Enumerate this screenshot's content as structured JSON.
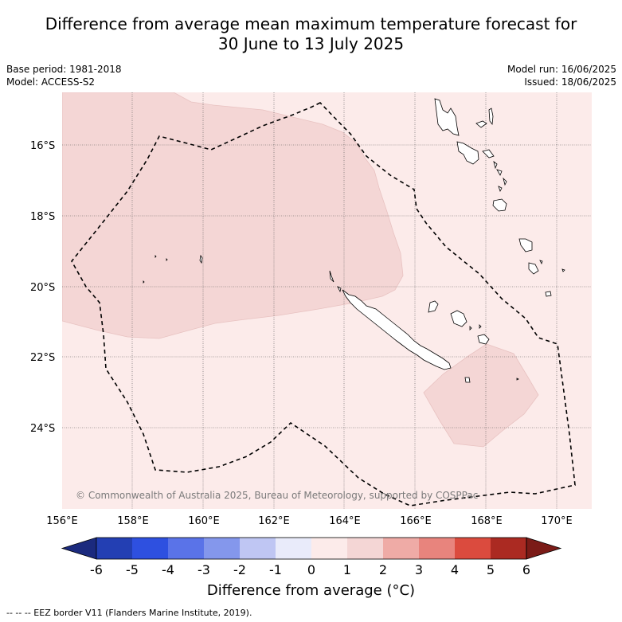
{
  "title": {
    "line1": "Difference from average mean maximum temperature forecast for",
    "line2": "30 June to 13 July 2025"
  },
  "meta": {
    "base_period": "Base period: 1981-2018",
    "model": "Model: ACCESS-S2",
    "model_run": "Model run: 16/06/2025",
    "issued": "Issued: 18/06/2025"
  },
  "map": {
    "lat_ticks": [
      "16°S",
      "18°S",
      "20°S",
      "22°S",
      "24°S"
    ],
    "lon_ticks": [
      "156°E",
      "158°E",
      "160°E",
      "162°E",
      "164°E",
      "166°E",
      "168°E",
      "170°E"
    ],
    "credit": "© Commonwealth of Australia 2025, Bureau of Meteorology, supported by COSPPac",
    "background_color": "#fcebea",
    "anomaly_color": "#f4d6d5"
  },
  "colorbar": {
    "ticks": [
      "-6",
      "-5",
      "-4",
      "-3",
      "-2",
      "-1",
      "0",
      "1",
      "2",
      "3",
      "4",
      "5",
      "6"
    ],
    "colors": [
      "#1b2a7e",
      "#233fb3",
      "#2e50e0",
      "#5a73e8",
      "#8497ec",
      "#bfc6f3",
      "#e9ebfa",
      "#fcebea",
      "#f4d6d5",
      "#efaba6",
      "#e8847d",
      "#db4b3e",
      "#ab2a22",
      "#7b1b17"
    ],
    "title": "Difference from average (°C)"
  },
  "footnote": "--  --  -- EEZ border V11 (Flanders Marine Institute, 2019)."
}
